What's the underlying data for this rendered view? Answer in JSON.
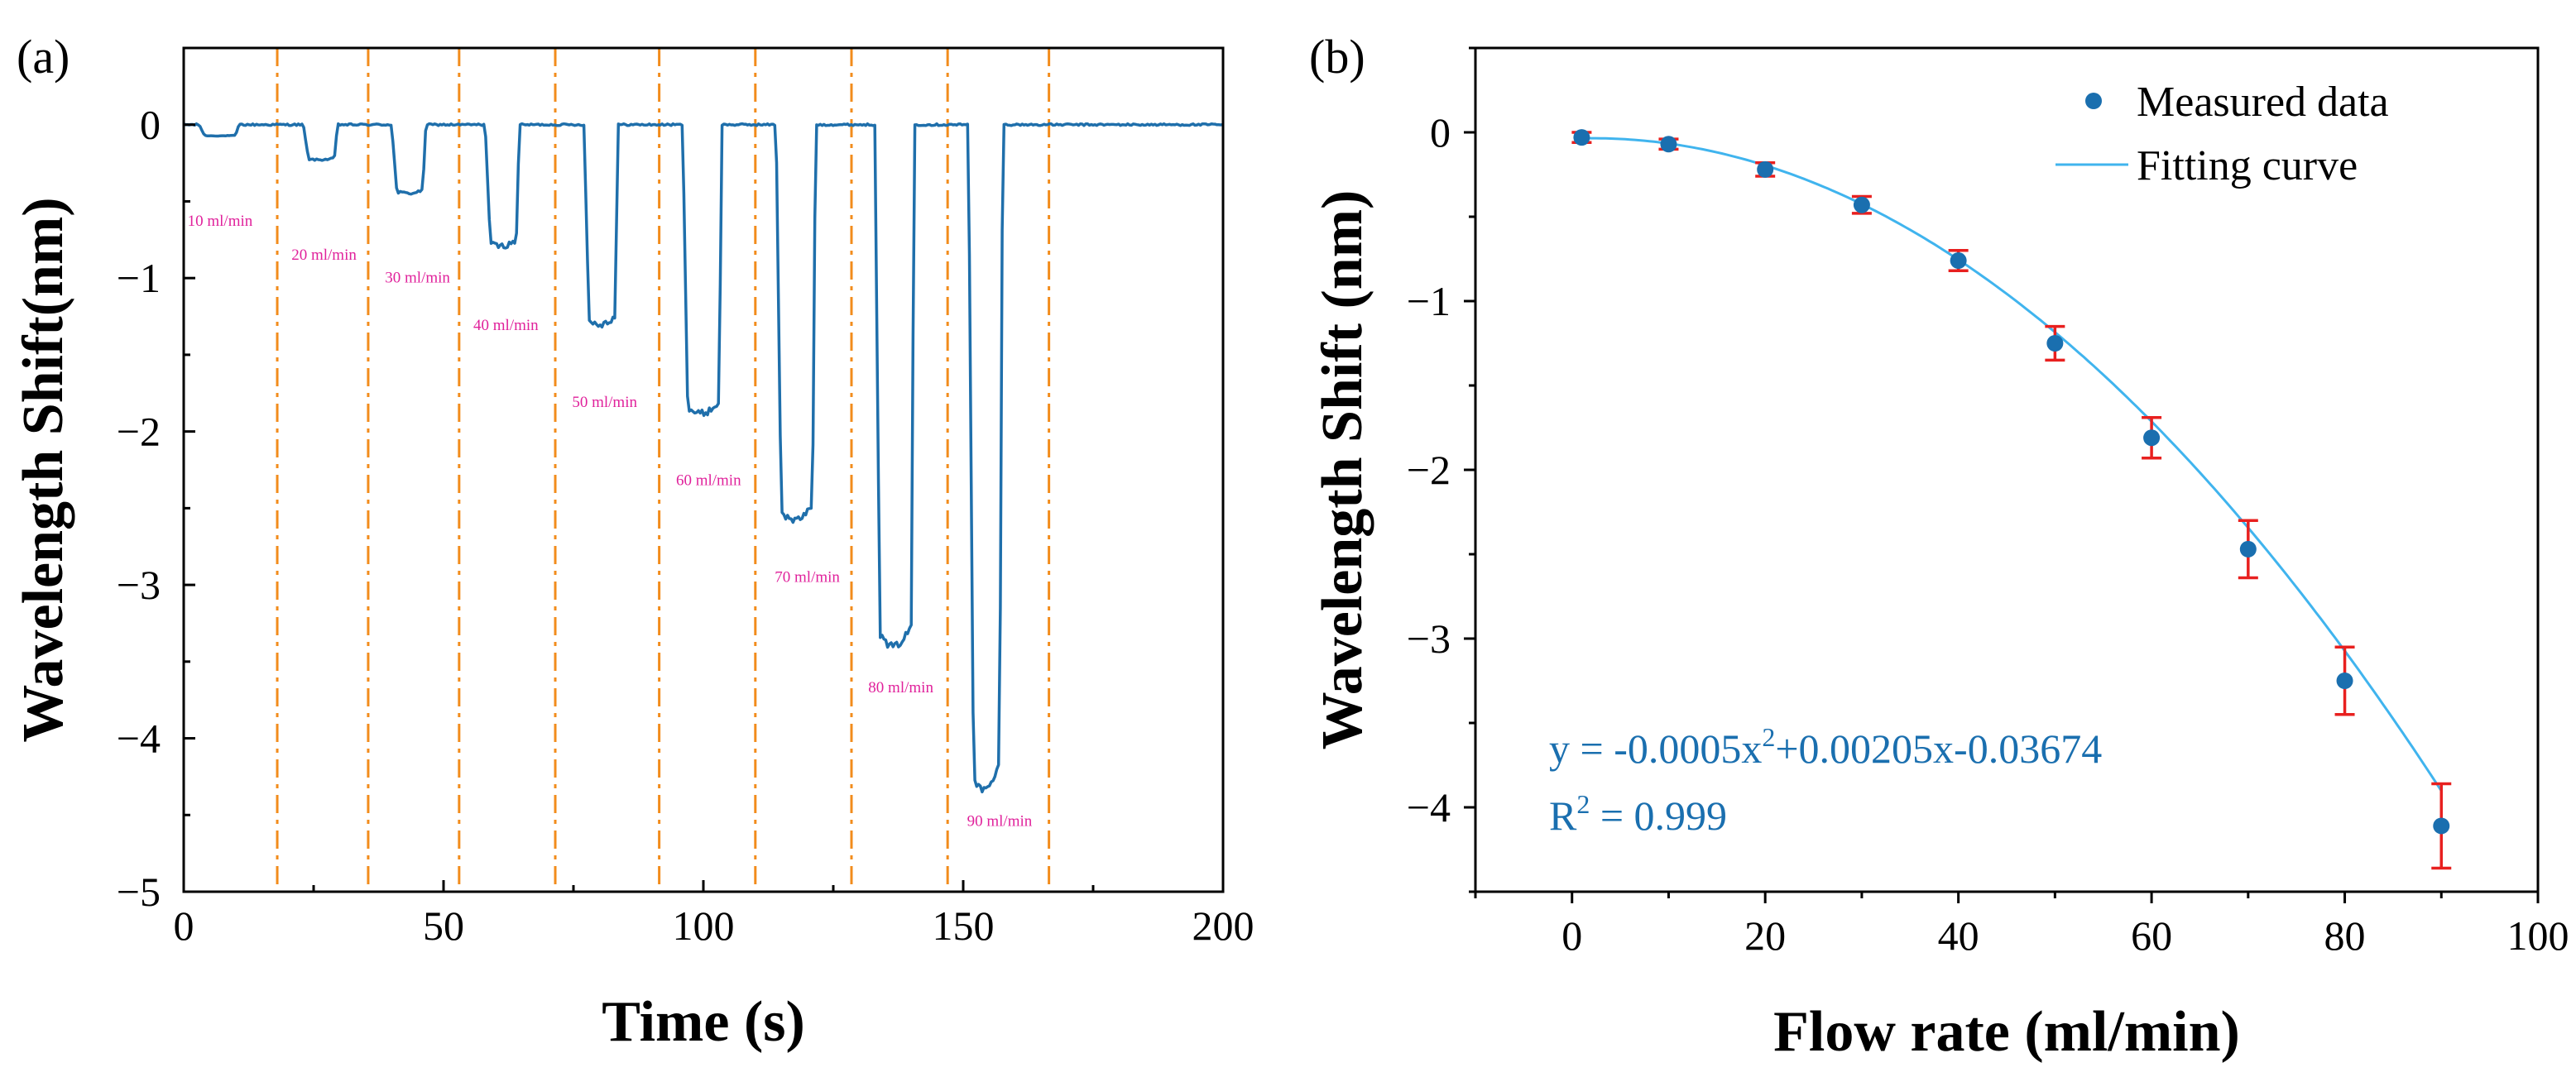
{
  "chart_data": [
    {
      "panel": "(a)",
      "type": "line",
      "xlabel": "Time (s)",
      "ylabel": "Wavelength Shift(nm)",
      "xlim": [
        0,
        200
      ],
      "ylim": [
        -5,
        0.5
      ],
      "xticks": [
        0,
        50,
        100,
        150,
        200
      ],
      "yticks": [
        0,
        -1,
        -2,
        -3,
        -4,
        -5
      ],
      "x_tick_labels": [
        "0",
        "50",
        "100",
        "150",
        "200"
      ],
      "y_tick_labels": [
        "0",
        "−1",
        "−2",
        "−3",
        "−4",
        "−5"
      ],
      "line_color": "#1f6fab",
      "marker_line_color": "#f28c1c",
      "baseline": 0,
      "dips": [
        {
          "start": 3,
          "end": 10,
          "depth": -0.07,
          "label": "10 ml/min"
        },
        {
          "start": 23,
          "end": 29,
          "depth": -0.22,
          "label": "20 ml/min"
        },
        {
          "start": 40,
          "end": 46,
          "depth": -0.43,
          "label": "30 ml/min"
        },
        {
          "start": 58,
          "end": 64,
          "depth": -0.76,
          "label": "40 ml/min"
        },
        {
          "start": 77,
          "end": 83,
          "depth": -1.25,
          "label": "50 ml/min"
        },
        {
          "start": 96,
          "end": 103,
          "depth": -1.81,
          "label": "60 ml/min"
        },
        {
          "start": 114,
          "end": 121,
          "depth": -2.48,
          "label": "70 ml/min"
        },
        {
          "start": 133,
          "end": 140,
          "depth": -3.27,
          "label": "80 ml/min"
        },
        {
          "start": 151,
          "end": 157,
          "depth": -4.17,
          "label": "90 ml/min"
        }
      ],
      "dashed_lines_x": [
        18,
        35.5,
        53,
        71.5,
        91.5,
        110,
        128.5,
        147,
        166.5
      ],
      "label_positions": [
        {
          "x": 7,
          "y": -0.66
        },
        {
          "x": 27,
          "y": -0.88
        },
        {
          "x": 45,
          "y": -1.03
        },
        {
          "x": 62,
          "y": -1.34
        },
        {
          "x": 81,
          "y": -1.84
        },
        {
          "x": 101,
          "y": -2.35
        },
        {
          "x": 120,
          "y": -2.98
        },
        {
          "x": 138,
          "y": -3.7
        },
        {
          "x": 157,
          "y": -4.57
        }
      ]
    },
    {
      "panel": "(b)",
      "type": "scatter",
      "xlabel": "Flow rate (ml/min)",
      "ylabel": "Wavelength Shift (nm)",
      "xlim": [
        -10,
        100
      ],
      "ylim": [
        -4.5,
        0.5
      ],
      "xticks": [
        0,
        20,
        40,
        60,
        80,
        100
      ],
      "yticks": [
        0,
        -1,
        -2,
        -3,
        -4
      ],
      "x_tick_labels": [
        "0",
        "20",
        "40",
        "60",
        "80",
        "100"
      ],
      "y_tick_labels": [
        "0",
        "−1",
        "−2",
        "−3",
        "−4"
      ],
      "series": [
        {
          "name": "Measured data",
          "x": [
            1,
            10,
            20,
            30,
            40,
            50,
            60,
            70,
            80,
            90
          ],
          "y": [
            -0.03,
            -0.07,
            -0.22,
            -0.43,
            -0.76,
            -1.25,
            -1.81,
            -2.47,
            -3.25,
            -4.11
          ],
          "err": [
            0.03,
            0.03,
            0.04,
            0.05,
            0.06,
            0.1,
            0.12,
            0.17,
            0.2,
            0.25
          ],
          "color": "#1a6faf",
          "error_color": "#e8201f"
        },
        {
          "name": "Fitting curve",
          "type": "line",
          "coefficients": {
            "a": -0.0005,
            "b": 0.00205,
            "c": -0.03674
          },
          "x_range": [
            1,
            90
          ],
          "color": "#40b4ee"
        }
      ],
      "legend": {
        "position": "top-right",
        "entries": [
          "Measured data",
          "Fitting curve"
        ]
      },
      "annotations": {
        "equation_prefix": "y = -0.0005x",
        "equation_sup": "2",
        "equation_suffix": "+0.00205x-0.03674",
        "r2_prefix": "R",
        "r2_sup": "2",
        "r2_suffix": " = 0.999"
      }
    }
  ]
}
